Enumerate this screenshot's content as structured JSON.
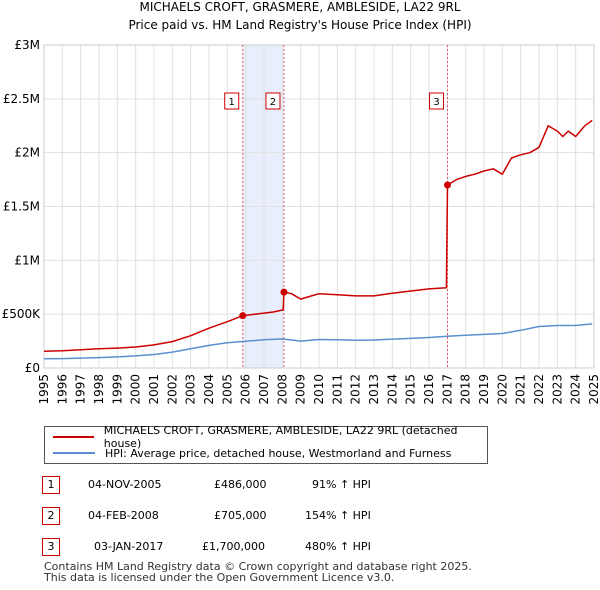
{
  "title": "MICHAELS CROFT, GRASMERE, AMBLESIDE, LA22 9RL",
  "subtitle": "Price paid vs. HM Land Registry's House Price Index (HPI)",
  "colors": {
    "price": "#cc0000",
    "hpi": "#5b8fd0",
    "shade": "#e8eefb",
    "vline": "#e06070",
    "grid": "#e0e0e0"
  },
  "chart_data": {
    "type": "line",
    "x_range": [
      1995,
      2025
    ],
    "ylim": [
      0,
      3000000
    ],
    "yticks": [
      0,
      500000,
      1000000,
      1500000,
      2000000,
      2500000,
      3000000
    ],
    "ytick_labels": [
      "£0",
      "£500K",
      "£1M",
      "£1.5M",
      "£2M",
      "£2.5M",
      "£3M"
    ],
    "xtick_labels": [
      "1995",
      "1996",
      "1997",
      "1998",
      "1999",
      "2000",
      "2001",
      "2002",
      "2003",
      "2004",
      "2005",
      "2006",
      "2007",
      "2008",
      "2009",
      "2010",
      "2011",
      "2012",
      "2013",
      "2014",
      "2015",
      "2016",
      "2017",
      "2018",
      "2019",
      "2020",
      "2021",
      "2022",
      "2023",
      "2024",
      "2025"
    ],
    "shaded_ranges": [
      [
        2005.84,
        2008.09
      ]
    ],
    "series": [
      {
        "name": "MICHAELS CROFT, GRASMERE, AMBLESIDE, LA22 9RL (detached house)",
        "color": "#cc0000",
        "points": [
          [
            1995.0,
            155000
          ],
          [
            1996.0,
            160000
          ],
          [
            1997.0,
            170000
          ],
          [
            1998.0,
            178000
          ],
          [
            1999.0,
            185000
          ],
          [
            2000.0,
            195000
          ],
          [
            2001.0,
            215000
          ],
          [
            2002.0,
            245000
          ],
          [
            2003.0,
            300000
          ],
          [
            2004.0,
            370000
          ],
          [
            2005.0,
            430000
          ],
          [
            2005.84,
            486000
          ],
          [
            2006.5,
            500000
          ],
          [
            2007.5,
            520000
          ],
          [
            2008.05,
            540000
          ],
          [
            2008.09,
            705000
          ],
          [
            2008.5,
            690000
          ],
          [
            2009.0,
            640000
          ],
          [
            2009.5,
            665000
          ],
          [
            2010.0,
            690000
          ],
          [
            2011.0,
            680000
          ],
          [
            2012.0,
            670000
          ],
          [
            2013.0,
            670000
          ],
          [
            2014.0,
            695000
          ],
          [
            2015.0,
            715000
          ],
          [
            2016.0,
            735000
          ],
          [
            2016.95,
            745000
          ],
          [
            2017.01,
            1700000
          ],
          [
            2017.5,
            1750000
          ],
          [
            2018.0,
            1780000
          ],
          [
            2018.5,
            1800000
          ],
          [
            2019.0,
            1830000
          ],
          [
            2019.5,
            1850000
          ],
          [
            2020.0,
            1800000
          ],
          [
            2020.5,
            1950000
          ],
          [
            2021.0,
            1980000
          ],
          [
            2021.5,
            2000000
          ],
          [
            2022.0,
            2050000
          ],
          [
            2022.5,
            2250000
          ],
          [
            2023.0,
            2200000
          ],
          [
            2023.3,
            2150000
          ],
          [
            2023.6,
            2200000
          ],
          [
            2024.0,
            2150000
          ],
          [
            2024.5,
            2250000
          ],
          [
            2024.9,
            2300000
          ]
        ]
      },
      {
        "name": "HPI: Average price, detached house, Westmorland and Furness",
        "color": "#5b8fd0",
        "points": [
          [
            1995.0,
            85000
          ],
          [
            1996.0,
            87000
          ],
          [
            1997.0,
            92000
          ],
          [
            1998.0,
            97000
          ],
          [
            1999.0,
            103000
          ],
          [
            2000.0,
            112000
          ],
          [
            2001.0,
            125000
          ],
          [
            2002.0,
            148000
          ],
          [
            2003.0,
            178000
          ],
          [
            2004.0,
            210000
          ],
          [
            2005.0,
            235000
          ],
          [
            2006.0,
            248000
          ],
          [
            2007.0,
            262000
          ],
          [
            2008.0,
            270000
          ],
          [
            2009.0,
            250000
          ],
          [
            2010.0,
            265000
          ],
          [
            2011.0,
            262000
          ],
          [
            2012.0,
            258000
          ],
          [
            2013.0,
            260000
          ],
          [
            2014.0,
            268000
          ],
          [
            2015.0,
            275000
          ],
          [
            2016.0,
            283000
          ],
          [
            2017.0,
            295000
          ],
          [
            2018.0,
            305000
          ],
          [
            2019.0,
            312000
          ],
          [
            2020.0,
            320000
          ],
          [
            2021.0,
            350000
          ],
          [
            2022.0,
            385000
          ],
          [
            2023.0,
            395000
          ],
          [
            2024.0,
            395000
          ],
          [
            2024.9,
            410000
          ]
        ]
      }
    ],
    "sales": [
      {
        "label": "1",
        "x": 2005.84,
        "price": 486000
      },
      {
        "label": "2",
        "x": 2008.09,
        "price": 705000
      },
      {
        "label": "3",
        "x": 2017.01,
        "price": 1700000
      }
    ]
  },
  "legend": {
    "price_label": "MICHAELS CROFT, GRASMERE, AMBLESIDE, LA22 9RL (detached house)",
    "hpi_label": "HPI: Average price, detached house, Westmorland and Furness"
  },
  "transactions": [
    {
      "num": "1",
      "date": "04-NOV-2005",
      "price": "£486,000",
      "hpi": "91% ↑ HPI"
    },
    {
      "num": "2",
      "date": "04-FEB-2008",
      "price": "£705,000",
      "hpi": "154% ↑ HPI"
    },
    {
      "num": "3",
      "date": "03-JAN-2017",
      "price": "£1,700,000",
      "hpi": "480% ↑ HPI"
    }
  ],
  "footer": {
    "line1": "Contains HM Land Registry data © Crown copyright and database right 2025.",
    "line2": "This data is licensed under the Open Government Licence v3.0."
  }
}
